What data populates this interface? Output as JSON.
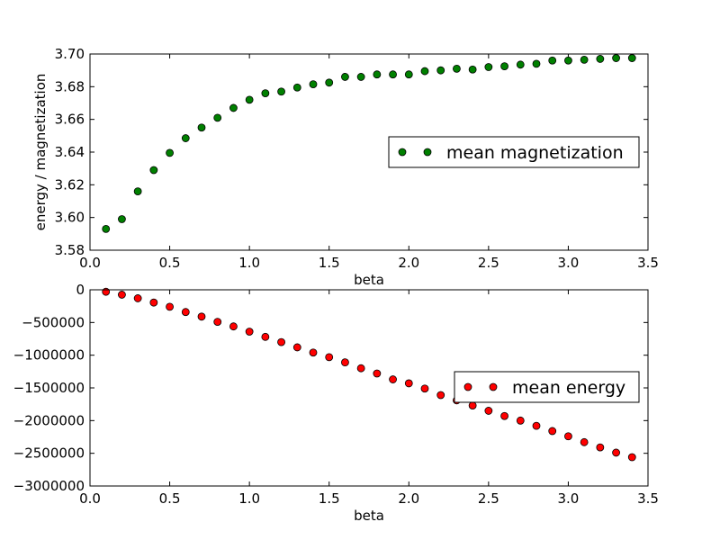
{
  "chart_data": [
    {
      "type": "scatter",
      "xlabel": "beta",
      "ylabel": "energy / magnetization",
      "xlim": [
        0.0,
        3.5
      ],
      "ylim": [
        3.58,
        3.7
      ],
      "xticks": [
        "0.0",
        "0.5",
        "1.0",
        "1.5",
        "2.0",
        "2.5",
        "3.0",
        "3.5"
      ],
      "yticks": [
        "3.58",
        "3.60",
        "3.62",
        "3.64",
        "3.66",
        "3.68",
        "3.70"
      ],
      "legend_position": "right",
      "series": [
        {
          "name": "mean magnetization",
          "color": "#008000",
          "x": [
            0.1,
            0.2,
            0.3,
            0.4,
            0.5,
            0.6,
            0.7,
            0.8,
            0.9,
            1.0,
            1.1,
            1.2,
            1.3,
            1.4,
            1.5,
            1.6,
            1.7,
            1.8,
            1.9,
            2.0,
            2.1,
            2.2,
            2.3,
            2.4,
            2.5,
            2.6,
            2.7,
            2.8,
            2.9,
            3.0,
            3.1,
            3.2,
            3.3,
            3.4
          ],
          "y": [
            3.593,
            3.599,
            3.616,
            3.629,
            3.6395,
            3.6485,
            3.655,
            3.661,
            3.667,
            3.672,
            3.676,
            3.677,
            3.6795,
            3.6815,
            3.6825,
            3.686,
            3.686,
            3.6875,
            3.6875,
            3.6875,
            3.6895,
            3.69,
            3.691,
            3.6905,
            3.692,
            3.6925,
            3.6935,
            3.694,
            3.696,
            3.696,
            3.6965,
            3.697,
            3.6975,
            3.6975
          ]
        }
      ]
    },
    {
      "type": "scatter",
      "xlabel": "beta",
      "ylabel": "",
      "xlim": [
        0.0,
        3.5
      ],
      "ylim": [
        -3000000,
        0
      ],
      "xticks": [
        "0.0",
        "0.5",
        "1.0",
        "1.5",
        "2.0",
        "2.5",
        "3.0",
        "3.5"
      ],
      "yticks": [
        "0",
        "−500000",
        "−1000000",
        "−1500000",
        "−2000000",
        "−2500000",
        "−3000000"
      ],
      "legend_position": "right",
      "series": [
        {
          "name": "mean energy",
          "color": "#ff0000",
          "x": [
            0.1,
            0.2,
            0.3,
            0.4,
            0.5,
            0.6,
            0.7,
            0.8,
            0.9,
            1.0,
            1.1,
            1.2,
            1.3,
            1.4,
            1.5,
            1.6,
            1.7,
            1.8,
            1.9,
            2.0,
            2.1,
            2.2,
            2.3,
            2.4,
            2.5,
            2.6,
            2.7,
            2.8,
            2.9,
            3.0,
            3.1,
            3.2,
            3.3,
            3.4
          ],
          "y": [
            -30000,
            -75000,
            -130000,
            -195000,
            -260000,
            -340000,
            -410000,
            -490000,
            -560000,
            -640000,
            -720000,
            -800000,
            -880000,
            -960000,
            -1030000,
            -1110000,
            -1200000,
            -1280000,
            -1370000,
            -1430000,
            -1510000,
            -1610000,
            -1690000,
            -1770000,
            -1850000,
            -1930000,
            -2000000,
            -2080000,
            -2160000,
            -2240000,
            -2330000,
            -2410000,
            -2490000,
            -2560000
          ]
        }
      ]
    }
  ]
}
